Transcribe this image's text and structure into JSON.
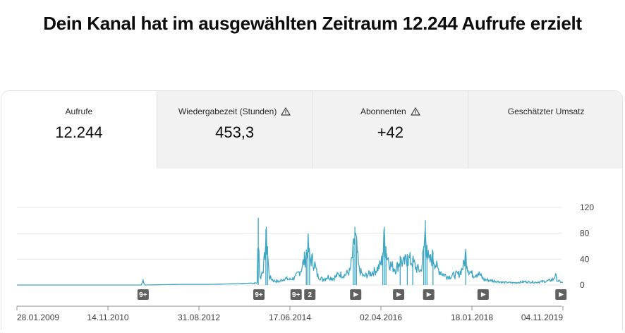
{
  "headline": "Dein Kanal hat im ausgewählten Zeitraum 12.244 Aufrufe erzielt",
  "tabs": [
    {
      "label": "Aufrufe",
      "value": "12.244",
      "warning": false,
      "active": true
    },
    {
      "label": "Wiedergabezeit (Stunden)",
      "value": "453,3",
      "warning": true,
      "active": false
    },
    {
      "label": "Abonnenten",
      "value": "+42",
      "warning": true,
      "active": false
    },
    {
      "label": "Geschätzter Umsatz",
      "value": "",
      "warning": false,
      "active": false
    }
  ],
  "colors": {
    "line": "#3ea6c1",
    "grid": "#e6e6e6",
    "marker_bg": "#606060"
  },
  "markers": [
    {
      "x": 0.2311,
      "label": "9+",
      "type": "count"
    },
    {
      "x": 0.4432,
      "label": "9+",
      "type": "count"
    },
    {
      "x": 0.5113,
      "label": "9+",
      "type": "count"
    },
    {
      "x": 0.5365,
      "label": "2",
      "type": "count"
    },
    {
      "x": 0.6204,
      "label": "",
      "type": "play-icon"
    },
    {
      "x": 0.6991,
      "label": "",
      "type": "play-icon"
    },
    {
      "x": 0.7541,
      "label": "",
      "type": "play-icon"
    },
    {
      "x": 0.8538,
      "label": "",
      "type": "play-icon"
    },
    {
      "x": 0.9964,
      "label": "",
      "type": "play-icon"
    }
  ],
  "chart_data": {
    "type": "line",
    "series": [
      {
        "values": [
          {
            "x": 0.0,
            "y": 0
          },
          {
            "x": 0.05,
            "y": 0
          },
          {
            "x": 0.1,
            "y": 0
          },
          {
            "x": 0.15,
            "y": 0
          },
          {
            "x": 0.2,
            "y": 0
          },
          {
            "x": 0.228,
            "y": 0
          },
          {
            "x": 0.231,
            "y": 9
          },
          {
            "x": 0.234,
            "y": 0
          },
          {
            "x": 0.3,
            "y": 1
          },
          {
            "x": 0.35,
            "y": 1
          },
          {
            "x": 0.4,
            "y": 2
          },
          {
            "x": 0.43,
            "y": 3
          },
          {
            "x": 0.44,
            "y": 4
          },
          {
            "x": 0.442,
            "y": 104
          },
          {
            "x": 0.445,
            "y": 10
          },
          {
            "x": 0.448,
            "y": 20
          },
          {
            "x": 0.453,
            "y": 40
          },
          {
            "x": 0.456,
            "y": 86
          },
          {
            "x": 0.459,
            "y": 60
          },
          {
            "x": 0.462,
            "y": 15
          },
          {
            "x": 0.47,
            "y": 8
          },
          {
            "x": 0.48,
            "y": 6
          },
          {
            "x": 0.49,
            "y": 12
          },
          {
            "x": 0.5,
            "y": 10
          },
          {
            "x": 0.51,
            "y": 14
          },
          {
            "x": 0.52,
            "y": 28
          },
          {
            "x": 0.53,
            "y": 55
          },
          {
            "x": 0.533,
            "y": 72
          },
          {
            "x": 0.536,
            "y": 50
          },
          {
            "x": 0.545,
            "y": 40
          },
          {
            "x": 0.55,
            "y": 18
          },
          {
            "x": 0.56,
            "y": 10
          },
          {
            "x": 0.57,
            "y": 15
          },
          {
            "x": 0.58,
            "y": 12
          },
          {
            "x": 0.59,
            "y": 20
          },
          {
            "x": 0.6,
            "y": 18
          },
          {
            "x": 0.61,
            "y": 25
          },
          {
            "x": 0.616,
            "y": 60
          },
          {
            "x": 0.619,
            "y": 90
          },
          {
            "x": 0.622,
            "y": 70
          },
          {
            "x": 0.626,
            "y": 30
          },
          {
            "x": 0.635,
            "y": 15
          },
          {
            "x": 0.645,
            "y": 20
          },
          {
            "x": 0.655,
            "y": 25
          },
          {
            "x": 0.665,
            "y": 35
          },
          {
            "x": 0.67,
            "y": 50
          },
          {
            "x": 0.673,
            "y": 90
          },
          {
            "x": 0.676,
            "y": 60
          },
          {
            "x": 0.685,
            "y": 35
          },
          {
            "x": 0.695,
            "y": 30
          },
          {
            "x": 0.702,
            "y": 45
          },
          {
            "x": 0.708,
            "y": 38
          },
          {
            "x": 0.715,
            "y": 48
          },
          {
            "x": 0.725,
            "y": 42
          },
          {
            "x": 0.732,
            "y": 30
          },
          {
            "x": 0.74,
            "y": 26
          },
          {
            "x": 0.745,
            "y": 60
          },
          {
            "x": 0.748,
            "y": 100
          },
          {
            "x": 0.751,
            "y": 62
          },
          {
            "x": 0.755,
            "y": 40
          },
          {
            "x": 0.762,
            "y": 52
          },
          {
            "x": 0.77,
            "y": 30
          },
          {
            "x": 0.78,
            "y": 20
          },
          {
            "x": 0.79,
            "y": 15
          },
          {
            "x": 0.8,
            "y": 18
          },
          {
            "x": 0.81,
            "y": 20
          },
          {
            "x": 0.818,
            "y": 35
          },
          {
            "x": 0.822,
            "y": 56
          },
          {
            "x": 0.826,
            "y": 30
          },
          {
            "x": 0.835,
            "y": 18
          },
          {
            "x": 0.845,
            "y": 22
          },
          {
            "x": 0.855,
            "y": 10
          },
          {
            "x": 0.87,
            "y": 8
          },
          {
            "x": 0.89,
            "y": 5
          },
          {
            "x": 0.91,
            "y": 4
          },
          {
            "x": 0.93,
            "y": 6
          },
          {
            "x": 0.95,
            "y": 5
          },
          {
            "x": 0.97,
            "y": 7
          },
          {
            "x": 0.982,
            "y": 10
          },
          {
            "x": 0.986,
            "y": 18
          },
          {
            "x": 0.99,
            "y": 8
          },
          {
            "x": 1.0,
            "y": 4
          }
        ]
      }
    ],
    "y_ticks": [
      "120",
      "80",
      "40",
      "0"
    ],
    "y_values": [
      120,
      80,
      40,
      0
    ],
    "ylim": [
      0,
      120
    ],
    "x_tick_labels": [
      "28.01.2009",
      "14.11.2010",
      "31.08.2012",
      "17.06.2014",
      "02.04.2016",
      "18.01.2018",
      "04.11.2019"
    ],
    "grid": true
  }
}
